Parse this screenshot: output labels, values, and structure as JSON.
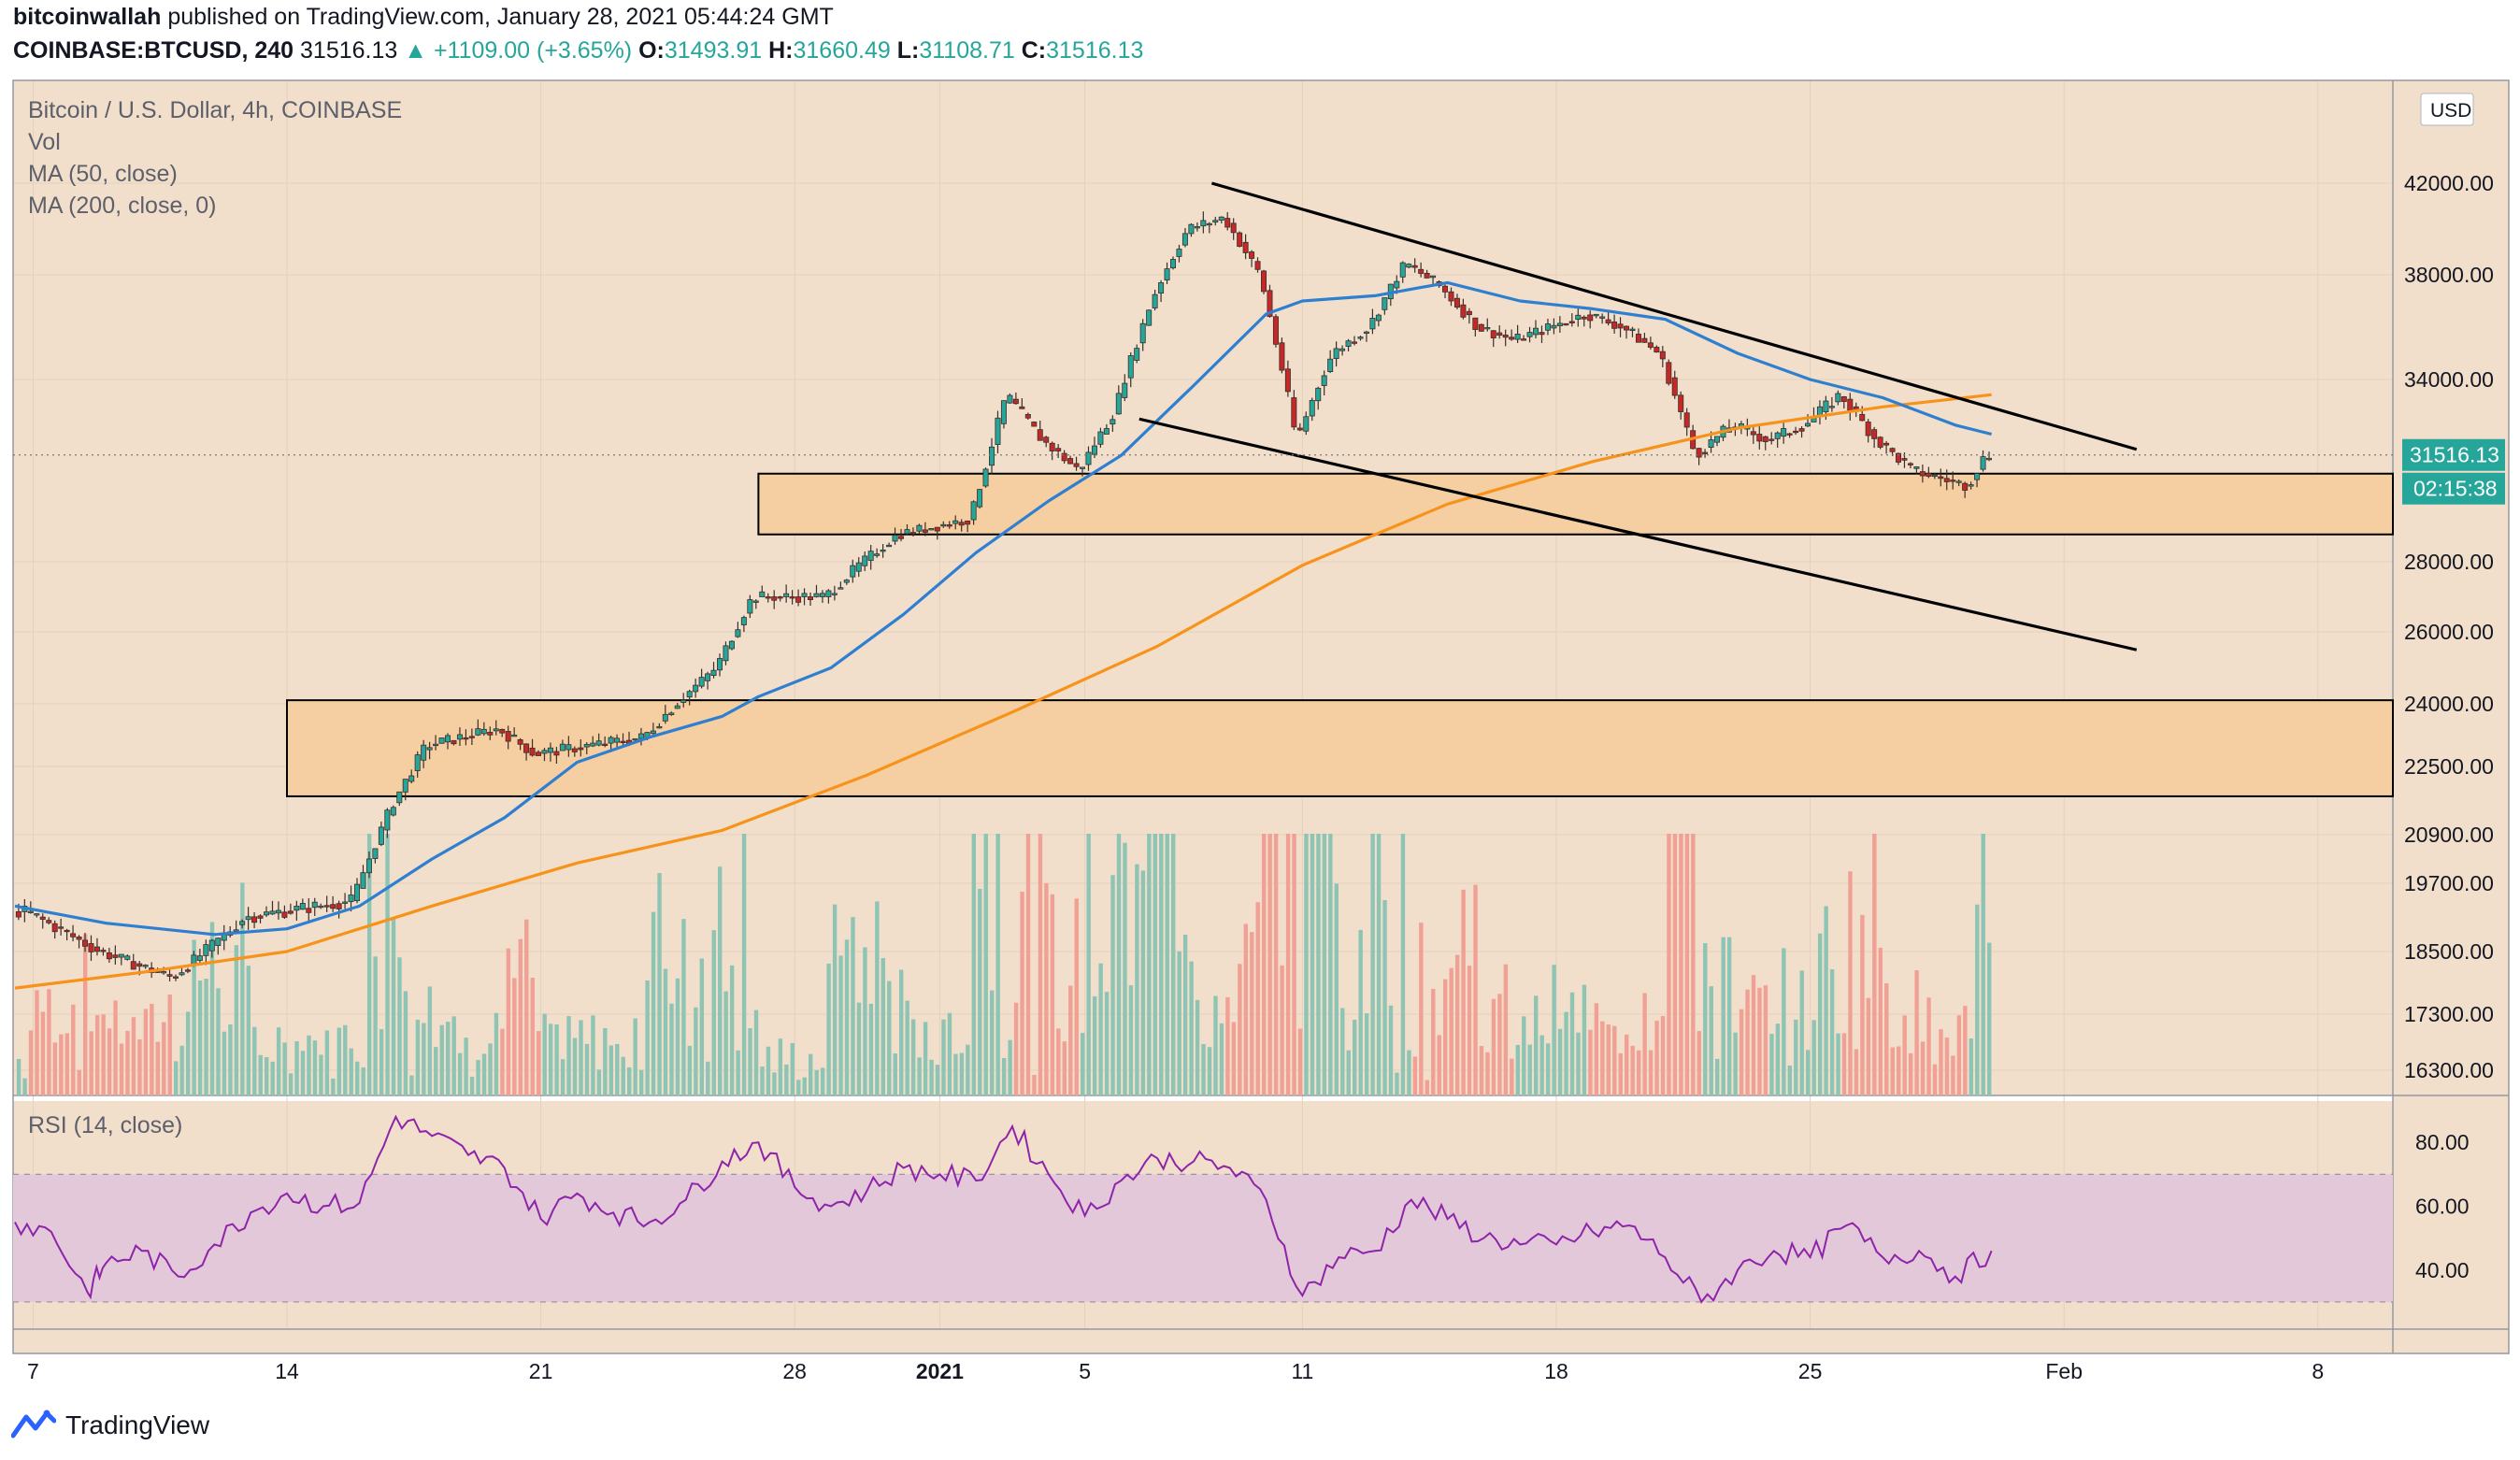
{
  "header": {
    "publisher": "bitcoinwallah",
    "published_text": "published on TradingView.com, January 28, 2021 05:44:24 GMT",
    "symbol": "COINBASE:BTCUSD, 240",
    "last": "31516.13",
    "change": "▲ +1109.00 (+3.65%)",
    "o_label": "O:",
    "o_value": "31493.91",
    "h_label": "H:",
    "h_value": "31660.49",
    "l_label": "L:",
    "l_value": "31108.71",
    "c_label": "C:",
    "c_value": "31516.13"
  },
  "legend": {
    "title": "Bitcoin / U.S. Dollar, 4h, COINBASE",
    "vol": "Vol",
    "ma50": "MA (50, close)",
    "ma200": "MA (200, close, 0)",
    "rsi": "RSI (14, close)"
  },
  "axis": {
    "currency": "USD",
    "price_ticks": [
      "42000.00",
      "38000.00",
      "34000.00",
      "28000.00",
      "26000.00",
      "24000.00",
      "22500.00",
      "20900.00",
      "19700.00",
      "18500.00",
      "17300.00",
      "16300.00"
    ],
    "rsi_ticks": [
      "80.00",
      "60.00",
      "40.00"
    ],
    "last_price_label": "31516.13",
    "countdown_label": "02:15:38",
    "x_ticks": [
      {
        "label": "7",
        "day": 7
      },
      {
        "label": "14",
        "day": 14
      },
      {
        "label": "21",
        "day": 21
      },
      {
        "label": "28",
        "day": 28
      },
      {
        "label": "2021",
        "day": 32
      },
      {
        "label": "5",
        "day": 36
      },
      {
        "label": "11",
        "day": 42
      },
      {
        "label": "18",
        "day": 49
      },
      {
        "label": "25",
        "day": 56
      },
      {
        "label": "Feb",
        "day": 63
      },
      {
        "label": "8",
        "day": 70
      }
    ]
  },
  "colors": {
    "bg": "#f2dfcb",
    "up": "#26a69a",
    "down": "#c62828",
    "ma50": "#2f7fd0",
    "ma200": "#f7931a",
    "zone_fill": "#f5cfa2",
    "rsi_line": "#8e24aa",
    "rsi_band": "#e2c8d8",
    "vol_up": "#8ec4b4",
    "vol_down": "#f0a094"
  },
  "chart_data": {
    "type": "candlestick",
    "x_unit": "day (Dec 2020 = day 1-31, Jan 2021 = day 32-62)",
    "price_range": [
      16300,
      46000
    ],
    "key_points": [
      {
        "day": 7,
        "close": 19200
      },
      {
        "day": 9,
        "close": 18500
      },
      {
        "day": 11,
        "close": 18000
      },
      {
        "day": 13,
        "close": 19100
      },
      {
        "day": 16,
        "close": 19400
      },
      {
        "day": 17,
        "close": 21500
      },
      {
        "day": 18,
        "close": 23000
      },
      {
        "day": 20,
        "close": 23400
      },
      {
        "day": 21,
        "close": 22800
      },
      {
        "day": 24,
        "close": 23200
      },
      {
        "day": 26,
        "close": 25000
      },
      {
        "day": 27,
        "close": 27000
      },
      {
        "day": 29,
        "close": 27000
      },
      {
        "day": 31,
        "close": 28900
      },
      {
        "day": 33,
        "close": 29400
      },
      {
        "day": 34,
        "close": 33500
      },
      {
        "day": 35,
        "close": 32000
      },
      {
        "day": 36,
        "close": 31000
      },
      {
        "day": 37,
        "close": 33000
      },
      {
        "day": 38,
        "close": 37000
      },
      {
        "day": 39,
        "close": 40000
      },
      {
        "day": 40,
        "close": 40500
      },
      {
        "day": 41,
        "close": 38000
      },
      {
        "day": 42,
        "close": 32000
      },
      {
        "day": 43,
        "close": 35000
      },
      {
        "day": 44,
        "close": 36000
      },
      {
        "day": 45,
        "close": 38500
      },
      {
        "day": 46,
        "close": 37500
      },
      {
        "day": 47,
        "close": 36000
      },
      {
        "day": 48,
        "close": 35500
      },
      {
        "day": 50,
        "close": 36500
      },
      {
        "day": 51,
        "close": 36000
      },
      {
        "day": 52,
        "close": 35000
      },
      {
        "day": 53,
        "close": 31500
      },
      {
        "day": 54,
        "close": 32500
      },
      {
        "day": 55,
        "close": 32000
      },
      {
        "day": 56,
        "close": 32500
      },
      {
        "day": 57,
        "close": 33500
      },
      {
        "day": 58,
        "close": 32000
      },
      {
        "day": 59,
        "close": 31000
      },
      {
        "day": 60.5,
        "close": 30500
      },
      {
        "day": 61,
        "close": 31516
      }
    ],
    "zones": [
      {
        "from": 28900,
        "to": 30900,
        "start_day": 27
      },
      {
        "from": 21800,
        "to": 24100,
        "start_day": 14
      }
    ],
    "channel_lines": [
      {
        "from": {
          "day": 39.5,
          "price": 42000
        },
        "to": {
          "day": 65,
          "price": 31700
        }
      },
      {
        "from": {
          "day": 37.5,
          "price": 32700
        },
        "to": {
          "day": 65,
          "price": 25500
        }
      }
    ],
    "ma50_series": [
      {
        "day": 6.5,
        "value": 19300
      },
      {
        "day": 9,
        "value": 19000
      },
      {
        "day": 12,
        "value": 18800
      },
      {
        "day": 14,
        "value": 18900
      },
      {
        "day": 16,
        "value": 19300
      },
      {
        "day": 18,
        "value": 20300
      },
      {
        "day": 20,
        "value": 21300
      },
      {
        "day": 22,
        "value": 22600
      },
      {
        "day": 24,
        "value": 23200
      },
      {
        "day": 26,
        "value": 23700
      },
      {
        "day": 27,
        "value": 24200
      },
      {
        "day": 29,
        "value": 25000
      },
      {
        "day": 31,
        "value": 26500
      },
      {
        "day": 33,
        "value": 28300
      },
      {
        "day": 35,
        "value": 30000
      },
      {
        "day": 37,
        "value": 31500
      },
      {
        "day": 39,
        "value": 33800
      },
      {
        "day": 41,
        "value": 36500
      },
      {
        "day": 42,
        "value": 37000
      },
      {
        "day": 44,
        "value": 37200
      },
      {
        "day": 46,
        "value": 37700
      },
      {
        "day": 48,
        "value": 37000
      },
      {
        "day": 50,
        "value": 36700
      },
      {
        "day": 52,
        "value": 36300
      },
      {
        "day": 54,
        "value": 35000
      },
      {
        "day": 56,
        "value": 34000
      },
      {
        "day": 58,
        "value": 33400
      },
      {
        "day": 60,
        "value": 32500
      },
      {
        "day": 61,
        "value": 32200
      }
    ],
    "ma200_series": [
      {
        "day": 6.5,
        "value": 17800
      },
      {
        "day": 10,
        "value": 18100
      },
      {
        "day": 14,
        "value": 18500
      },
      {
        "day": 18,
        "value": 19300
      },
      {
        "day": 22,
        "value": 20200
      },
      {
        "day": 26,
        "value": 21000
      },
      {
        "day": 30,
        "value": 22300
      },
      {
        "day": 34,
        "value": 23800
      },
      {
        "day": 38,
        "value": 25600
      },
      {
        "day": 42,
        "value": 27900
      },
      {
        "day": 46,
        "value": 29900
      },
      {
        "day": 50,
        "value": 31300
      },
      {
        "day": 54,
        "value": 32400
      },
      {
        "day": 58,
        "value": 33100
      },
      {
        "day": 61,
        "value": 33500
      }
    ],
    "rsi_range": [
      25,
      90
    ],
    "rsi_band": [
      30,
      70
    ],
    "rsi_series": [
      {
        "day": 6.5,
        "value": 55
      },
      {
        "day": 7.5,
        "value": 52
      },
      {
        "day": 8.5,
        "value": 33
      },
      {
        "day": 9,
        "value": 42
      },
      {
        "day": 10,
        "value": 46
      },
      {
        "day": 11,
        "value": 38
      },
      {
        "day": 12,
        "value": 48
      },
      {
        "day": 13,
        "value": 58
      },
      {
        "day": 14,
        "value": 64
      },
      {
        "day": 15,
        "value": 60
      },
      {
        "day": 16,
        "value": 61
      },
      {
        "day": 17,
        "value": 88
      },
      {
        "day": 18,
        "value": 82
      },
      {
        "day": 19,
        "value": 76
      },
      {
        "day": 20,
        "value": 72
      },
      {
        "day": 21,
        "value": 56
      },
      {
        "day": 22,
        "value": 64
      },
      {
        "day": 23,
        "value": 58
      },
      {
        "day": 24,
        "value": 55
      },
      {
        "day": 25,
        "value": 62
      },
      {
        "day": 26,
        "value": 74
      },
      {
        "day": 27,
        "value": 80
      },
      {
        "day": 28,
        "value": 66
      },
      {
        "day": 29,
        "value": 60
      },
      {
        "day": 30,
        "value": 65
      },
      {
        "day": 31,
        "value": 72
      },
      {
        "day": 32,
        "value": 70
      },
      {
        "day": 33,
        "value": 68
      },
      {
        "day": 34,
        "value": 85
      },
      {
        "day": 35,
        "value": 70
      },
      {
        "day": 36,
        "value": 57
      },
      {
        "day": 37,
        "value": 68
      },
      {
        "day": 38,
        "value": 75
      },
      {
        "day": 39,
        "value": 74
      },
      {
        "day": 40,
        "value": 72
      },
      {
        "day": 41,
        "value": 62
      },
      {
        "day": 42,
        "value": 32
      },
      {
        "day": 43,
        "value": 44
      },
      {
        "day": 44,
        "value": 46
      },
      {
        "day": 45,
        "value": 62
      },
      {
        "day": 46,
        "value": 56
      },
      {
        "day": 47,
        "value": 50
      },
      {
        "day": 48,
        "value": 48
      },
      {
        "day": 49,
        "value": 48
      },
      {
        "day": 50,
        "value": 52
      },
      {
        "day": 51,
        "value": 54
      },
      {
        "day": 52,
        "value": 44
      },
      {
        "day": 53,
        "value": 30
      },
      {
        "day": 54,
        "value": 40
      },
      {
        "day": 55,
        "value": 46
      },
      {
        "day": 56,
        "value": 44
      },
      {
        "day": 57,
        "value": 54
      },
      {
        "day": 58,
        "value": 44
      },
      {
        "day": 59,
        "value": 46
      },
      {
        "day": 60,
        "value": 38
      },
      {
        "day": 61,
        "value": 46
      }
    ]
  },
  "footer": {
    "brand": "TradingView"
  }
}
